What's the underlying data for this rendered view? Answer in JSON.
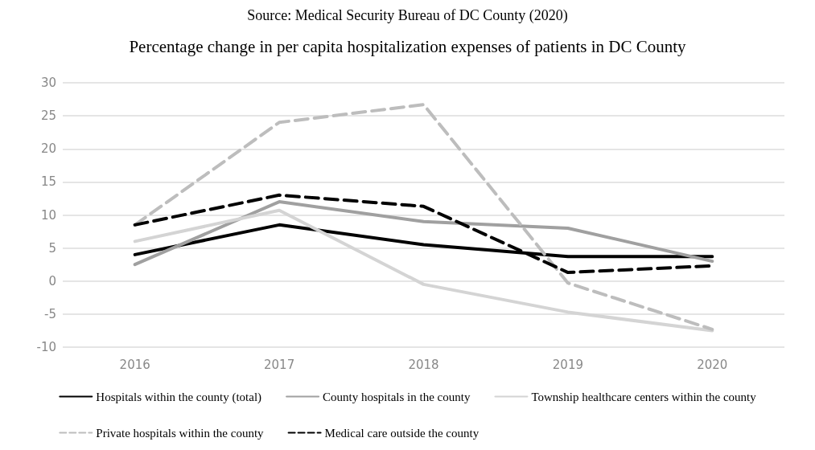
{
  "chart_data": {
    "type": "line",
    "title": "Percentage change in per capita hospitalization expenses of patients in DC County",
    "annotations": [
      "Source: Medical Security Bureau of DC County (2020)"
    ],
    "categories": [
      "2016",
      "2017",
      "2018",
      "2019",
      "2020"
    ],
    "ylim": [
      -10,
      30
    ],
    "yticks": [
      -10,
      -5,
      0,
      5,
      10,
      15,
      20,
      25,
      30
    ],
    "grid": "y",
    "legend": "bottom",
    "marker": "none",
    "series": [
      {
        "name": "Hospitals within the county (total)",
        "color": "#000000",
        "line_style": "solid",
        "values": [
          4,
          8.5,
          5.5,
          3.7,
          3.7
        ]
      },
      {
        "name": "County hospitals in the county",
        "color": "#a0a0a0",
        "line_style": "solid",
        "values": [
          2.5,
          12,
          9,
          8,
          3
        ]
      },
      {
        "name": "Township healthcare centers within the county",
        "color": "#d4d4d4",
        "line_style": "solid",
        "values": [
          6,
          10.7,
          -0.5,
          -4.7,
          -7.5
        ]
      },
      {
        "name": "Private hospitals within the county",
        "color": "#bdbdbd",
        "line_style": "dashed",
        "values": [
          8.5,
          24,
          26.7,
          -0.3,
          -7.3
        ]
      },
      {
        "name": "Medical care outside the county",
        "color": "#000000",
        "line_style": "dashed",
        "values": [
          8.5,
          13,
          11.3,
          1.3,
          2.3
        ]
      }
    ]
  }
}
